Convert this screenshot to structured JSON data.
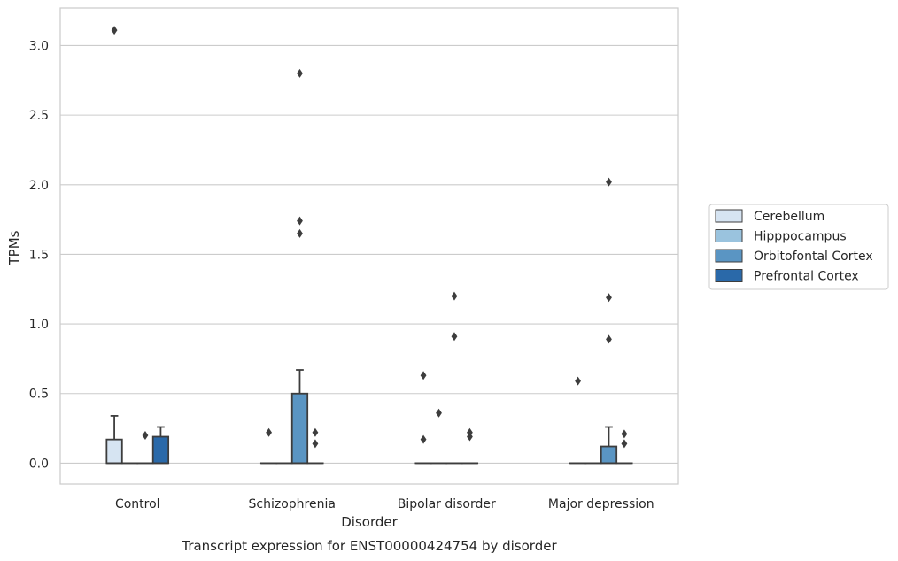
{
  "chart_data": {
    "type": "box",
    "title": "Transcript expression for ENST00000424754 by disorder",
    "xlabel": "Disorder",
    "ylabel": "TPMs",
    "ylim": [
      -0.15,
      3.27
    ],
    "yticks": [
      "0.0",
      "0.5",
      "1.0",
      "1.5",
      "2.0",
      "2.5",
      "3.0"
    ],
    "grid": true,
    "legend_position": "right",
    "categories": [
      "Control",
      "Schizophrenia",
      "Bipolar disorder",
      "Major depression"
    ],
    "series": [
      {
        "name": "Cerebellum",
        "color": "#d6e4f2",
        "boxes": [
          {
            "category": "Control",
            "q1": 0.0,
            "median": 0.0,
            "q3": 0.17,
            "whisker_low": 0.0,
            "whisker_high": 0.34,
            "outliers": [
              3.11
            ]
          },
          {
            "category": "Schizophrenia",
            "q1": 0.0,
            "median": 0.0,
            "q3": 0.0,
            "whisker_low": 0.0,
            "whisker_high": 0.0,
            "outliers": [
              0.22
            ]
          },
          {
            "category": "Bipolar disorder",
            "q1": 0.0,
            "median": 0.0,
            "q3": 0.0,
            "whisker_low": 0.0,
            "whisker_high": 0.0,
            "outliers": [
              0.17,
              0.63
            ]
          },
          {
            "category": "Major depression",
            "q1": 0.0,
            "median": 0.0,
            "q3": 0.0,
            "whisker_low": 0.0,
            "whisker_high": 0.0,
            "outliers": [
              0.59
            ]
          }
        ]
      },
      {
        "name": "Hipppocampus",
        "color": "#9ac3de",
        "boxes": [
          {
            "category": "Control",
            "q1": 0.0,
            "median": 0.0,
            "q3": 0.0,
            "whisker_low": 0.0,
            "whisker_high": 0.0,
            "outliers": []
          },
          {
            "category": "Schizophrenia",
            "q1": 0.0,
            "median": 0.0,
            "q3": 0.0,
            "whisker_low": 0.0,
            "whisker_high": 0.0,
            "outliers": []
          },
          {
            "category": "Bipolar disorder",
            "q1": 0.0,
            "median": 0.0,
            "q3": 0.0,
            "whisker_low": 0.0,
            "whisker_high": 0.0,
            "outliers": [
              0.36
            ]
          },
          {
            "category": "Major depression",
            "q1": 0.0,
            "median": 0.0,
            "q3": 0.0,
            "whisker_low": 0.0,
            "whisker_high": 0.0,
            "outliers": []
          }
        ]
      },
      {
        "name": "Orbitofontal Cortex",
        "color": "#5a95c3",
        "boxes": [
          {
            "category": "Control",
            "q1": 0.0,
            "median": 0.0,
            "q3": 0.0,
            "whisker_low": 0.0,
            "whisker_high": 0.0,
            "outliers": [
              0.2
            ]
          },
          {
            "category": "Schizophrenia",
            "q1": 0.0,
            "median": 0.0,
            "q3": 0.5,
            "whisker_low": 0.0,
            "whisker_high": 0.67,
            "outliers": [
              1.65,
              1.74,
              2.8
            ]
          },
          {
            "category": "Bipolar disorder",
            "q1": 0.0,
            "median": 0.0,
            "q3": 0.0,
            "whisker_low": 0.0,
            "whisker_high": 0.0,
            "outliers": [
              0.91,
              1.2
            ]
          },
          {
            "category": "Major depression",
            "q1": 0.0,
            "median": 0.0,
            "q3": 0.12,
            "whisker_low": 0.0,
            "whisker_high": 0.26,
            "outliers": [
              0.89,
              1.19,
              2.02
            ]
          }
        ]
      },
      {
        "name": "Prefrontal Cortex",
        "color": "#2a69a9",
        "boxes": [
          {
            "category": "Control",
            "q1": 0.0,
            "median": 0.0,
            "q3": 0.19,
            "whisker_low": 0.0,
            "whisker_high": 0.26,
            "outliers": []
          },
          {
            "category": "Schizophrenia",
            "q1": 0.0,
            "median": 0.0,
            "q3": 0.0,
            "whisker_low": 0.0,
            "whisker_high": 0.0,
            "outliers": [
              0.14,
              0.22
            ]
          },
          {
            "category": "Bipolar disorder",
            "q1": 0.0,
            "median": 0.0,
            "q3": 0.0,
            "whisker_low": 0.0,
            "whisker_high": 0.0,
            "outliers": [
              0.19,
              0.22
            ]
          },
          {
            "category": "Major depression",
            "q1": 0.0,
            "median": 0.0,
            "q3": 0.0,
            "whisker_low": 0.0,
            "whisker_high": 0.0,
            "outliers": [
              0.14,
              0.21
            ]
          }
        ]
      }
    ],
    "colors": {
      "axes_edge": "#cccccc",
      "grid": "#cccccc",
      "box_edge": "#3d3d3d",
      "text": "#262626"
    }
  }
}
